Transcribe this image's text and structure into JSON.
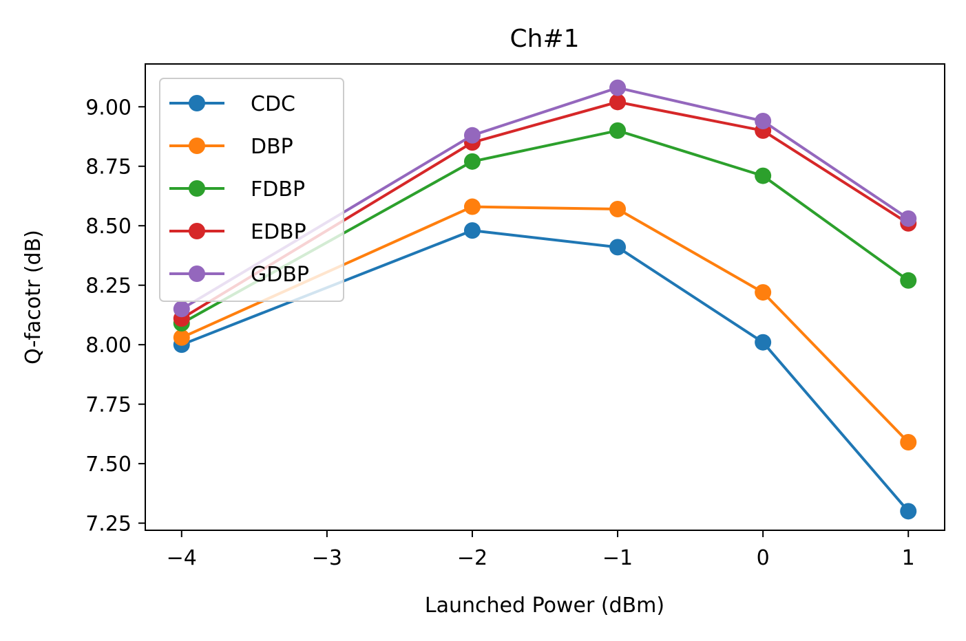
{
  "chart_data": {
    "type": "line",
    "title": "Ch#1",
    "xlabel": "Launched Power (dBm)",
    "ylabel": "Q-facotr (dB)",
    "x": [
      -4,
      -2,
      -1,
      0,
      1
    ],
    "xlim": [
      -4.25,
      1.25
    ],
    "ylim": [
      7.22,
      9.18
    ],
    "xticks": [
      -4,
      -3,
      -2,
      -1,
      0,
      1
    ],
    "xtick_labels": [
      "−4",
      "−3",
      "−2",
      "−1",
      "0",
      "1"
    ],
    "yticks": [
      7.25,
      7.5,
      7.75,
      8.0,
      8.25,
      8.5,
      8.75,
      9.0
    ],
    "ytick_labels": [
      "7.25",
      "7.50",
      "7.75",
      "8.00",
      "8.25",
      "8.50",
      "8.75",
      "9.00"
    ],
    "grid": false,
    "legend_position": "top-left",
    "series": [
      {
        "name": "CDC",
        "color": "#1f77b4",
        "values": [
          8.0,
          8.48,
          8.41,
          8.01,
          7.3
        ]
      },
      {
        "name": "DBP",
        "color": "#ff7f0e",
        "values": [
          8.03,
          8.58,
          8.57,
          8.22,
          7.59
        ]
      },
      {
        "name": "FDBP",
        "color": "#2ca02c",
        "values": [
          8.09,
          8.77,
          8.9,
          8.71,
          8.27
        ]
      },
      {
        "name": "EDBP",
        "color": "#d62728",
        "values": [
          8.11,
          8.85,
          9.02,
          8.9,
          8.51
        ]
      },
      {
        "name": "GDBP",
        "color": "#9467bd",
        "values": [
          8.15,
          8.88,
          9.08,
          8.94,
          8.53
        ]
      }
    ]
  }
}
